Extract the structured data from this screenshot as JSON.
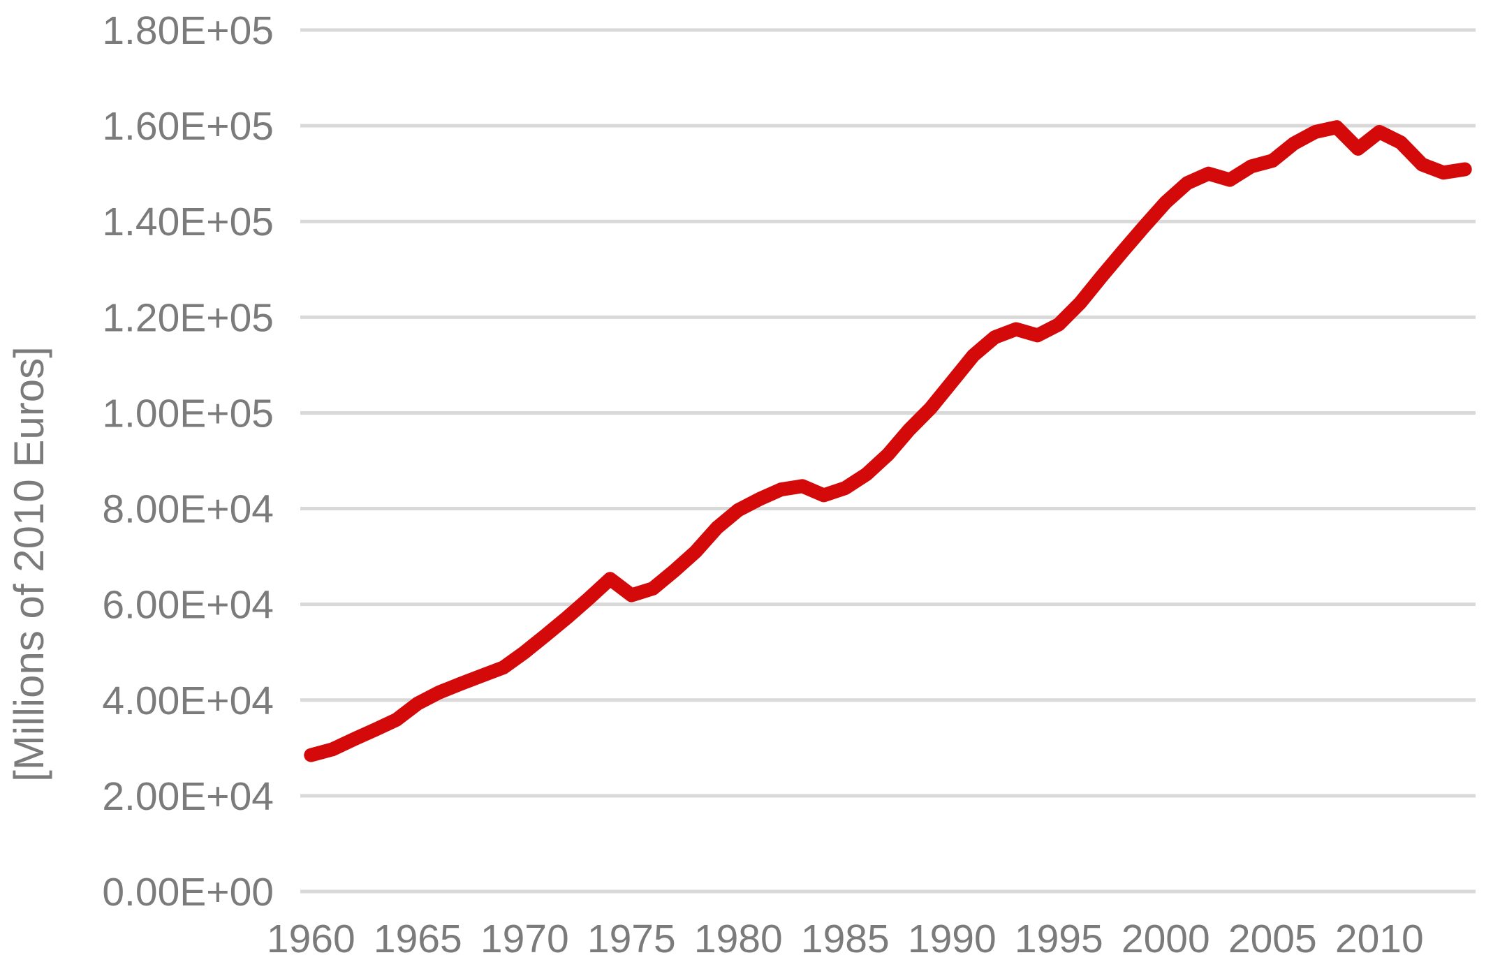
{
  "chart_data": {
    "type": "line",
    "ylabel": "[Millions of 2010 Euros]",
    "xlabel": "",
    "legend": "none",
    "grid": "horizontal-only",
    "ylim": [
      0,
      180000
    ],
    "y_tick_step": 20000,
    "y_tick_labels": [
      "0.00E+00",
      "2.00E+04",
      "4.00E+04",
      "6.00E+04",
      "8.00E+04",
      "1.00E+05",
      "1.20E+05",
      "1.40E+05",
      "1.60E+05",
      "1.80E+05"
    ],
    "y_tick_values": [
      0,
      20000,
      40000,
      60000,
      80000,
      100000,
      120000,
      140000,
      160000,
      180000
    ],
    "x_tick_labels": [
      "1960",
      "1965",
      "1970",
      "1975",
      "1980",
      "1985",
      "1990",
      "1995",
      "2000",
      "2005",
      "2010"
    ],
    "x_tick_years": [
      1960,
      1965,
      1970,
      1975,
      1980,
      1985,
      1990,
      1995,
      2000,
      2005,
      2010
    ],
    "x": [
      1960,
      1961,
      1962,
      1963,
      1964,
      1965,
      1966,
      1967,
      1968,
      1969,
      1970,
      1971,
      1972,
      1973,
      1974,
      1975,
      1976,
      1977,
      1978,
      1979,
      1980,
      1981,
      1982,
      1983,
      1984,
      1985,
      1986,
      1987,
      1988,
      1989,
      1990,
      1991,
      1992,
      1993,
      1994,
      1995,
      1996,
      1997,
      1998,
      1999,
      2000,
      2001,
      2002,
      2003,
      2004,
      2005,
      2006,
      2007,
      2008,
      2009,
      2010,
      2011,
      2012,
      2013,
      2014
    ],
    "series": [
      {
        "name": "series-1",
        "color": "#d40a0a",
        "values": [
          28500,
          29700,
          31800,
          33800,
          35900,
          39300,
          41600,
          43400,
          45100,
          46800,
          50000,
          53600,
          57300,
          61200,
          65300,
          61900,
          63300,
          67000,
          71000,
          76000,
          79700,
          82000,
          84000,
          84700,
          82800,
          84300,
          87200,
          91300,
          96500,
          101000,
          106500,
          112000,
          115800,
          117500,
          116200,
          118500,
          123000,
          128500,
          133800,
          139000,
          144000,
          148000,
          150000,
          148700,
          151500,
          152700,
          156300,
          158700,
          159700,
          155200,
          158700,
          156500,
          151900,
          150200,
          150900
        ]
      }
    ],
    "colors": {
      "line": "#d40a0a",
      "gridline": "#d9d9d9",
      "tick_label": "#7b7b7b",
      "axis_title": "#7b7b7b",
      "background": "#ffffff"
    }
  }
}
